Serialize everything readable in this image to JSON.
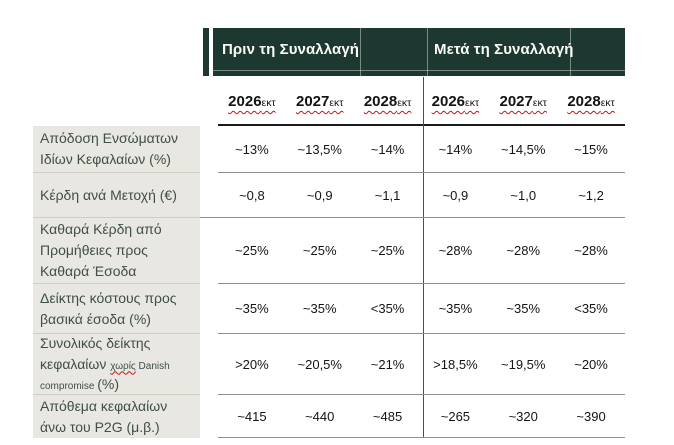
{
  "banner": {
    "before_title": "Πριν τη Συναλλαγή",
    "after_title": "Μετά τη Συναλλαγή"
  },
  "years": {
    "labels": [
      "2026",
      "2027",
      "2028"
    ],
    "suffix": "εκτ"
  },
  "rows": [
    {
      "label": "Απόδοση Ενσώματων\nΙδίων Κεφαλαίων (%)"
    },
    {
      "label": "Κέρδη ανά Μετοχή (€)"
    },
    {
      "label": "Καθαρά Κέρδη από\nΠρομήθειες προς\nΚαθαρά Έσοδα"
    },
    {
      "label": "Δείκτης κόστους προς\nβασικά έσοδα (%)"
    },
    {
      "parts": {
        "p1": "Συνολικός δείκτης\nκεφαλαίων ",
        "p2": "χωρίς",
        "p3": " Danish\ncompromise ",
        "p4": "(%)"
      }
    },
    {
      "label": "Απόθεμα κεφαλαίων\nάνω του P2G (μ.β.)"
    }
  ],
  "values": [
    [
      "~13%",
      "~13,5%",
      "~14%",
      "~14%",
      "~14,5%",
      "~15%"
    ],
    [
      "~0,8",
      "~0,9",
      "~1,1",
      "~0,9",
      "~1,0",
      "~1,2"
    ],
    [
      "~25%",
      "~25%",
      "~25%",
      "~28%",
      "~28%",
      "~28%"
    ],
    [
      "~35%",
      "~35%",
      "<35%",
      "~35%",
      "~35%",
      "<35%"
    ],
    [
      ">20%",
      "~20,5%",
      "~21%",
      ">18,5%",
      "~19,5%",
      "~20%"
    ],
    [
      "~415",
      "~440",
      "~485",
      "~265",
      "~320",
      "~390"
    ]
  ],
  "colors": {
    "banner_bg": "#1c3831",
    "label_bg": "#e9e7e1",
    "spellcheck_red": "#c41414",
    "label_text": "#3f4f48"
  }
}
